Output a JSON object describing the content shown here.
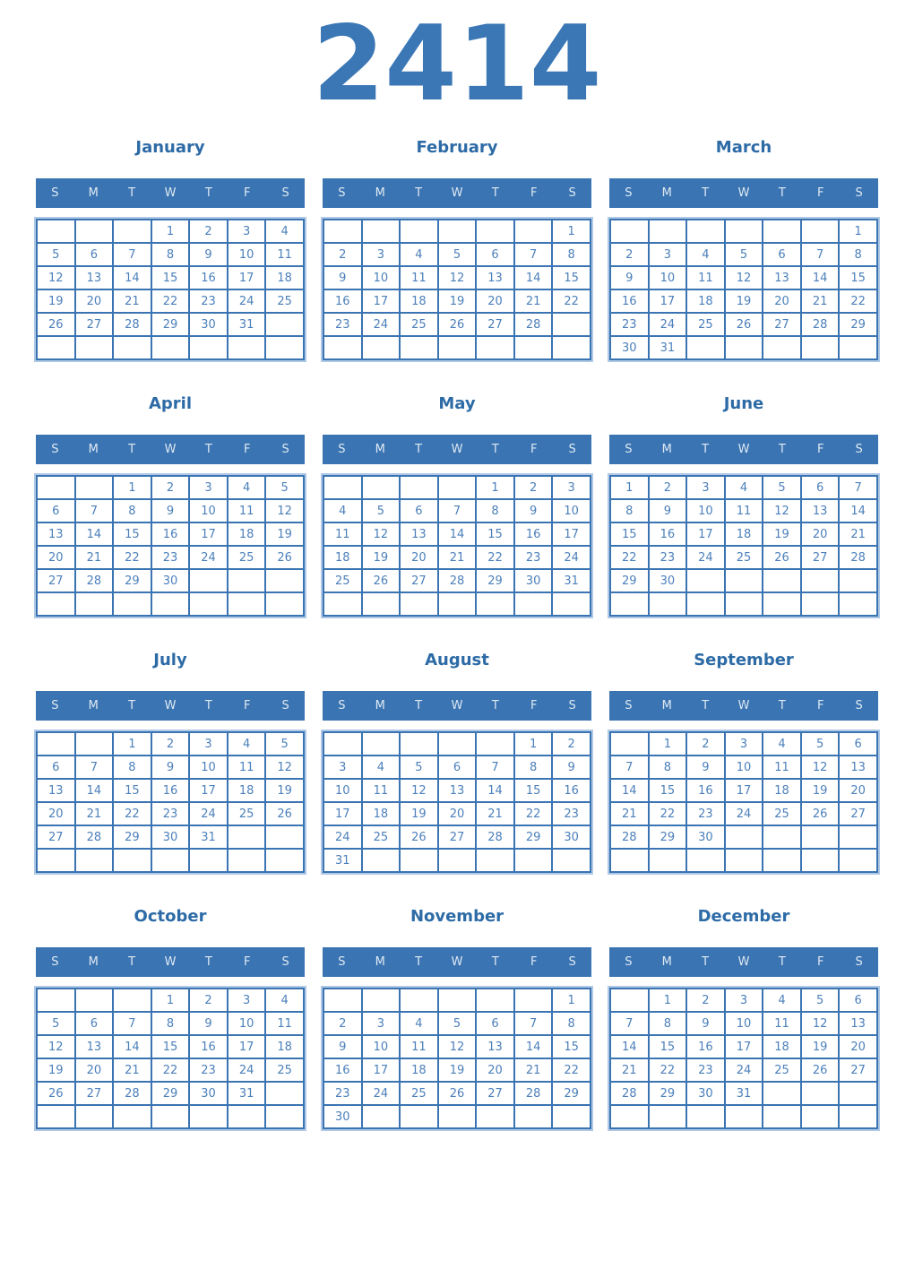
{
  "year": "2414",
  "weekdays": [
    "S",
    "M",
    "T",
    "W",
    "T",
    "F",
    "S"
  ],
  "months": [
    {
      "name": "January",
      "weeks": [
        [
          "",
          "",
          "",
          "1",
          "2",
          "3",
          "4"
        ],
        [
          "5",
          "6",
          "7",
          "8",
          "9",
          "10",
          "11"
        ],
        [
          "12",
          "13",
          "14",
          "15",
          "16",
          "17",
          "18"
        ],
        [
          "19",
          "20",
          "21",
          "22",
          "23",
          "24",
          "25"
        ],
        [
          "26",
          "27",
          "28",
          "29",
          "30",
          "31",
          ""
        ],
        [
          "",
          "",
          "",
          "",
          "",
          "",
          ""
        ]
      ]
    },
    {
      "name": "February",
      "weeks": [
        [
          "",
          "",
          "",
          "",
          "",
          "",
          "1"
        ],
        [
          "2",
          "3",
          "4",
          "5",
          "6",
          "7",
          "8"
        ],
        [
          "9",
          "10",
          "11",
          "12",
          "13",
          "14",
          "15"
        ],
        [
          "16",
          "17",
          "18",
          "19",
          "20",
          "21",
          "22"
        ],
        [
          "23",
          "24",
          "25",
          "26",
          "27",
          "28",
          ""
        ],
        [
          "",
          "",
          "",
          "",
          "",
          "",
          ""
        ]
      ]
    },
    {
      "name": "March",
      "weeks": [
        [
          "",
          "",
          "",
          "",
          "",
          "",
          "1"
        ],
        [
          "2",
          "3",
          "4",
          "5",
          "6",
          "7",
          "8"
        ],
        [
          "9",
          "10",
          "11",
          "12",
          "13",
          "14",
          "15"
        ],
        [
          "16",
          "17",
          "18",
          "19",
          "20",
          "21",
          "22"
        ],
        [
          "23",
          "24",
          "25",
          "26",
          "27",
          "28",
          "29"
        ],
        [
          "30",
          "31",
          "",
          "",
          "",
          "",
          ""
        ]
      ]
    },
    {
      "name": "April",
      "weeks": [
        [
          "",
          "",
          "1",
          "2",
          "3",
          "4",
          "5"
        ],
        [
          "6",
          "7",
          "8",
          "9",
          "10",
          "11",
          "12"
        ],
        [
          "13",
          "14",
          "15",
          "16",
          "17",
          "18",
          "19"
        ],
        [
          "20",
          "21",
          "22",
          "23",
          "24",
          "25",
          "26"
        ],
        [
          "27",
          "28",
          "29",
          "30",
          "",
          "",
          ""
        ],
        [
          "",
          "",
          "",
          "",
          "",
          "",
          ""
        ]
      ]
    },
    {
      "name": "May",
      "weeks": [
        [
          "",
          "",
          "",
          "",
          "1",
          "2",
          "3"
        ],
        [
          "4",
          "5",
          "6",
          "7",
          "8",
          "9",
          "10"
        ],
        [
          "11",
          "12",
          "13",
          "14",
          "15",
          "16",
          "17"
        ],
        [
          "18",
          "19",
          "20",
          "21",
          "22",
          "23",
          "24"
        ],
        [
          "25",
          "26",
          "27",
          "28",
          "29",
          "30",
          "31"
        ],
        [
          "",
          "",
          "",
          "",
          "",
          "",
          ""
        ]
      ]
    },
    {
      "name": "June",
      "weeks": [
        [
          "1",
          "2",
          "3",
          "4",
          "5",
          "6",
          "7"
        ],
        [
          "8",
          "9",
          "10",
          "11",
          "12",
          "13",
          "14"
        ],
        [
          "15",
          "16",
          "17",
          "18",
          "19",
          "20",
          "21"
        ],
        [
          "22",
          "23",
          "24",
          "25",
          "26",
          "27",
          "28"
        ],
        [
          "29",
          "30",
          "",
          "",
          "",
          "",
          ""
        ],
        [
          "",
          "",
          "",
          "",
          "",
          "",
          ""
        ]
      ]
    },
    {
      "name": "July",
      "weeks": [
        [
          "",
          "",
          "1",
          "2",
          "3",
          "4",
          "5"
        ],
        [
          "6",
          "7",
          "8",
          "9",
          "10",
          "11",
          "12"
        ],
        [
          "13",
          "14",
          "15",
          "16",
          "17",
          "18",
          "19"
        ],
        [
          "20",
          "21",
          "22",
          "23",
          "24",
          "25",
          "26"
        ],
        [
          "27",
          "28",
          "29",
          "30",
          "31",
          "",
          ""
        ],
        [
          "",
          "",
          "",
          "",
          "",
          "",
          ""
        ]
      ]
    },
    {
      "name": "August",
      "weeks": [
        [
          "",
          "",
          "",
          "",
          "",
          "1",
          "2"
        ],
        [
          "3",
          "4",
          "5",
          "6",
          "7",
          "8",
          "9"
        ],
        [
          "10",
          "11",
          "12",
          "13",
          "14",
          "15",
          "16"
        ],
        [
          "17",
          "18",
          "19",
          "20",
          "21",
          "22",
          "23"
        ],
        [
          "24",
          "25",
          "26",
          "27",
          "28",
          "29",
          "30"
        ],
        [
          "31",
          "",
          "",
          "",
          "",
          "",
          ""
        ]
      ]
    },
    {
      "name": "September",
      "weeks": [
        [
          "",
          "1",
          "2",
          "3",
          "4",
          "5",
          "6"
        ],
        [
          "7",
          "8",
          "9",
          "10",
          "11",
          "12",
          "13"
        ],
        [
          "14",
          "15",
          "16",
          "17",
          "18",
          "19",
          "20"
        ],
        [
          "21",
          "22",
          "23",
          "24",
          "25",
          "26",
          "27"
        ],
        [
          "28",
          "29",
          "30",
          "",
          "",
          "",
          ""
        ],
        [
          "",
          "",
          "",
          "",
          "",
          "",
          ""
        ]
      ]
    },
    {
      "name": "October",
      "weeks": [
        [
          "",
          "",
          "",
          "1",
          "2",
          "3",
          "4"
        ],
        [
          "5",
          "6",
          "7",
          "8",
          "9",
          "10",
          "11"
        ],
        [
          "12",
          "13",
          "14",
          "15",
          "16",
          "17",
          "18"
        ],
        [
          "19",
          "20",
          "21",
          "22",
          "23",
          "24",
          "25"
        ],
        [
          "26",
          "27",
          "28",
          "29",
          "30",
          "31",
          ""
        ],
        [
          "",
          "",
          "",
          "",
          "",
          "",
          ""
        ]
      ]
    },
    {
      "name": "November",
      "weeks": [
        [
          "",
          "",
          "",
          "",
          "",
          "",
          "1"
        ],
        [
          "2",
          "3",
          "4",
          "5",
          "6",
          "7",
          "8"
        ],
        [
          "9",
          "10",
          "11",
          "12",
          "13",
          "14",
          "15"
        ],
        [
          "16",
          "17",
          "18",
          "19",
          "20",
          "21",
          "22"
        ],
        [
          "23",
          "24",
          "25",
          "26",
          "27",
          "28",
          "29"
        ],
        [
          "30",
          "",
          "",
          "",
          "",
          "",
          ""
        ]
      ]
    },
    {
      "name": "December",
      "weeks": [
        [
          "",
          "1",
          "2",
          "3",
          "4",
          "5",
          "6"
        ],
        [
          "7",
          "8",
          "9",
          "10",
          "11",
          "12",
          "13"
        ],
        [
          "14",
          "15",
          "16",
          "17",
          "18",
          "19",
          "20"
        ],
        [
          "21",
          "22",
          "23",
          "24",
          "25",
          "26",
          "27"
        ],
        [
          "28",
          "29",
          "30",
          "31",
          "",
          "",
          ""
        ],
        [
          "",
          "",
          "",
          "",
          "",
          "",
          ""
        ]
      ]
    }
  ],
  "colors": {
    "year_title": "#3b76b5",
    "month_title": "#2d6ba6",
    "header_bg": "#3a74b2",
    "header_text": "#dfe9f3",
    "grid_border": "#3a74b2",
    "grid_outline": "#b0c9e6",
    "day_text": "#4c80ba",
    "background": "#ffffff"
  }
}
